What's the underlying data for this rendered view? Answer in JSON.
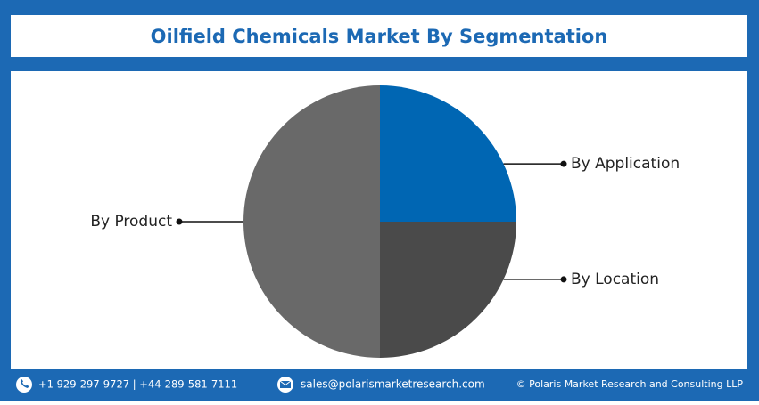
{
  "chart_data": {
    "type": "pie",
    "title": "Oilfield Chemicals Market By Segmentation",
    "categories": [
      "By Application",
      "By Location",
      "By Product"
    ],
    "values": [
      25,
      25,
      50
    ],
    "colors": [
      "#0066b3",
      "#4a4a4a",
      "#696969"
    ]
  },
  "footer": {
    "phone": "+1 929-297-9727 | +44-289-581-7111",
    "email": "sales@polarismarketresearch.com",
    "copyright": "© Polaris Market Research and Consulting LLP"
  }
}
